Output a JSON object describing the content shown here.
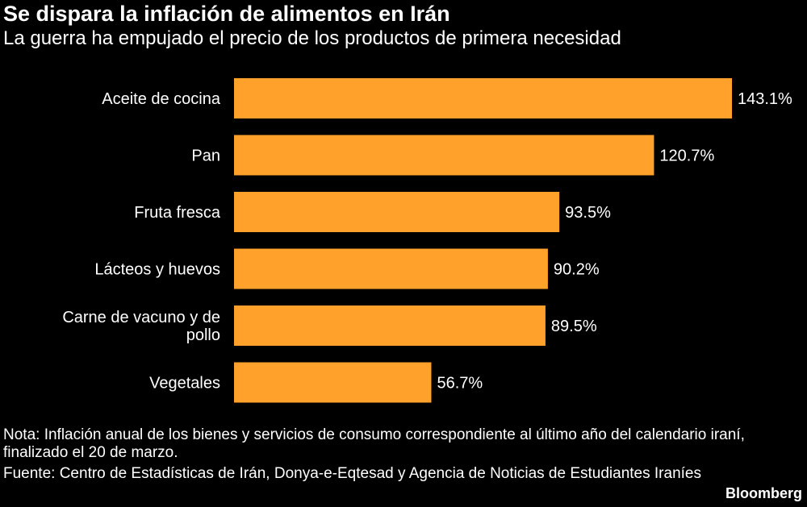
{
  "header": {
    "title": "Se dispara la inflación de alimentos en Irán",
    "subtitle": "La guerra ha empujado el precio de los productos de primera necesidad"
  },
  "chart_data": {
    "type": "bar",
    "orientation": "horizontal",
    "categories": [
      [
        "Aceite de cocina"
      ],
      [
        "Pan"
      ],
      [
        "Fruta fresca"
      ],
      [
        "Lácteos y huevos"
      ],
      [
        "Carne de vacuno y de",
        "pollo"
      ],
      [
        "Vegetales"
      ]
    ],
    "values": [
      143.1,
      120.7,
      93.5,
      90.2,
      89.5,
      56.7
    ],
    "value_labels": [
      "143.1%",
      "120.7%",
      "93.5%",
      "90.2%",
      "89.5%",
      "56.7%"
    ],
    "bar_color": "#FFA12B",
    "xlim": [
      0,
      143.1
    ],
    "grid": false,
    "legend": "none"
  },
  "footer": {
    "note": "Nota: Inflación anual de los bienes y servicios de consumo correspondiente al último año del calendario iraní, finalizado el 20 de marzo.",
    "source": "Fuente: Centro de Estadísticas de Irán, Donya-e-Eqtesad y Agencia de Noticias de Estudiantes Iraníes",
    "brand": "Bloomberg"
  }
}
